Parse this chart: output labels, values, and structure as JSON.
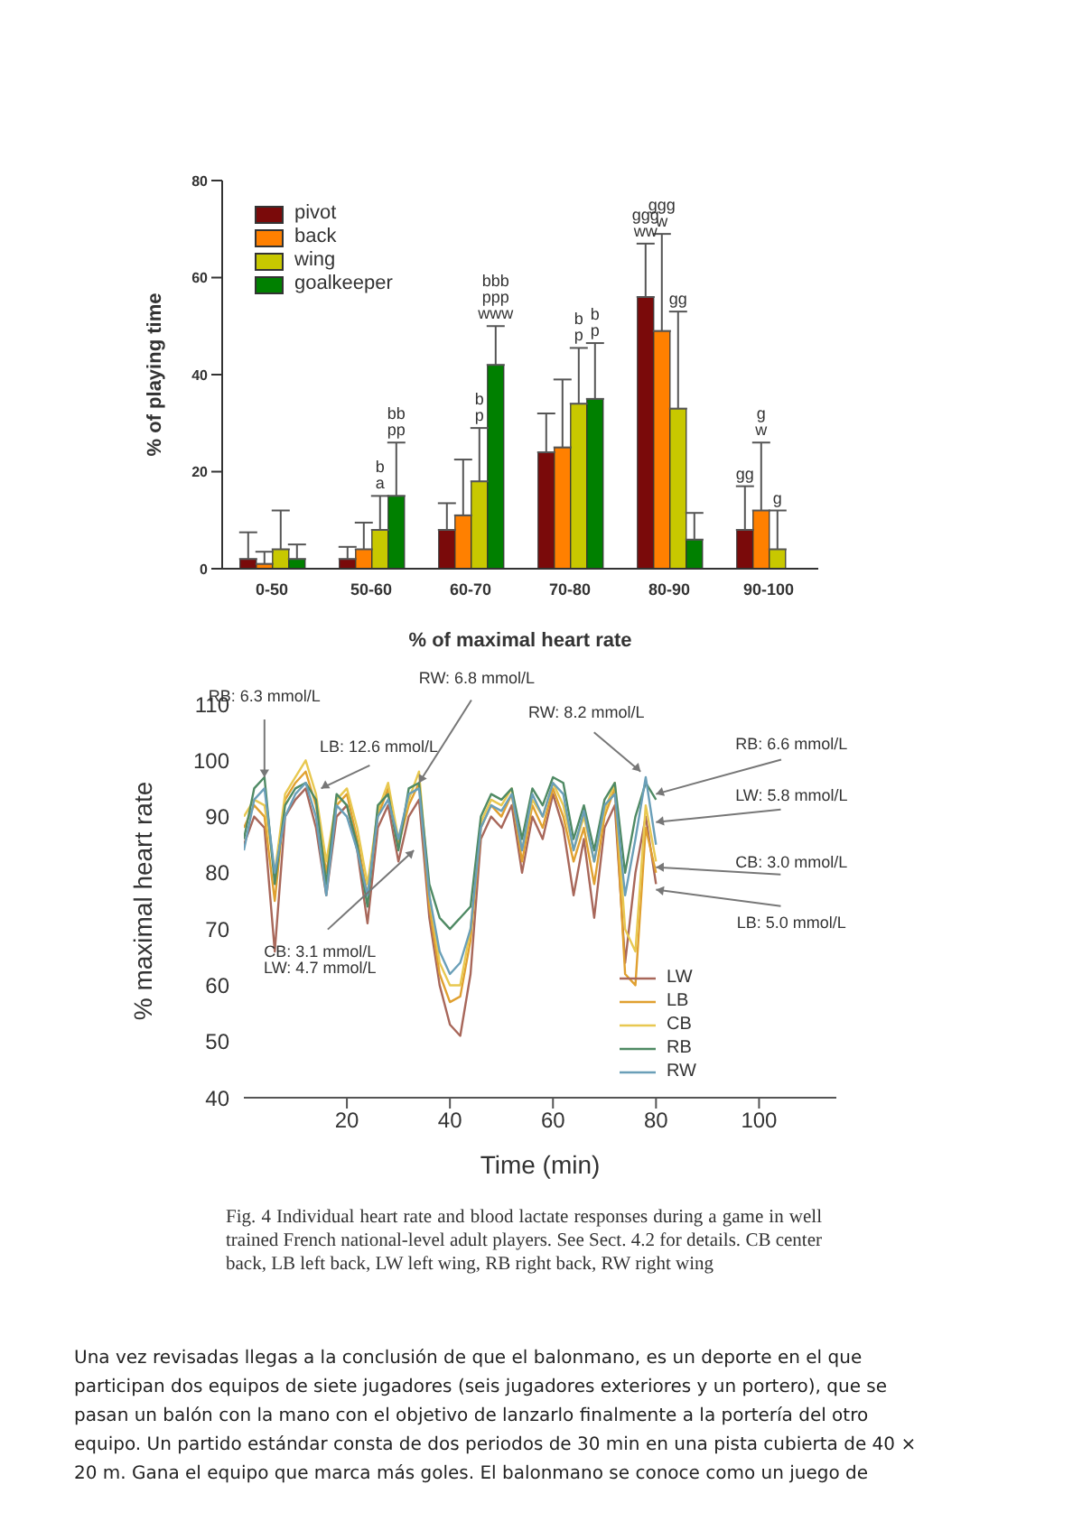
{
  "chart_data": [
    {
      "type": "bar",
      "ylabel": "% of playing time",
      "xlabel": "% of maximal heart rate",
      "categories": [
        "0-50",
        "50-60",
        "60-70",
        "70-80",
        "80-90",
        "90-100"
      ],
      "ylim": [
        0,
        80
      ],
      "yticks": [
        0,
        20,
        40,
        60,
        80
      ],
      "grid": false,
      "legend": "top left",
      "series": [
        {
          "name": "pivot",
          "color": "#7a0a0a",
          "values": [
            2,
            2,
            8,
            24,
            56,
            8
          ],
          "errors": [
            [
              2,
              7.5
            ],
            [
              2,
              4.5
            ],
            [
              8,
              13.5
            ],
            [
              24,
              32
            ],
            [
              56,
              67
            ],
            [
              8,
              17
            ]
          ]
        },
        {
          "name": "back",
          "color": "#ff8000",
          "values": [
            1,
            4,
            11,
            25,
            49,
            12
          ],
          "errors": [
            [
              1,
              3.5
            ],
            [
              4,
              9.5
            ],
            [
              11,
              22.5
            ],
            [
              25,
              39
            ],
            [
              49,
              69
            ],
            [
              12,
              26
            ]
          ]
        },
        {
          "name": "wing",
          "color": "#c8c800",
          "values": [
            4,
            8,
            18,
            34,
            33,
            4
          ],
          "errors": [
            [
              4,
              12
            ],
            [
              8,
              15
            ],
            [
              18,
              29
            ],
            [
              34,
              45.5
            ],
            [
              33,
              53
            ],
            [
              4,
              12
            ]
          ]
        },
        {
          "name": "goalkeeper",
          "color": "#008000",
          "values": [
            2,
            15,
            42,
            35,
            6,
            null
          ],
          "errors": [
            [
              2,
              5
            ],
            [
              15,
              26
            ],
            [
              42,
              50
            ],
            [
              35,
              46.5
            ],
            [
              6,
              11.5
            ],
            null
          ]
        }
      ],
      "annotations": [
        "b\na",
        "bb\npp",
        "b\np",
        "bbb\nppp\nwww",
        "b\np",
        "b\np",
        "ggg\nww",
        "ggg\nw",
        "gg",
        "gg",
        "g\nw",
        "g"
      ]
    },
    {
      "type": "line",
      "ylabel": "% maximal heart rate",
      "xlabel": "Time (min)",
      "xlim": [
        0,
        115
      ],
      "xticks": [
        20,
        40,
        60,
        80,
        100
      ],
      "ylim": [
        40,
        110
      ],
      "yticks": [
        40,
        50,
        60,
        70,
        80,
        90,
        100,
        110
      ],
      "grid": false,
      "legend": "bottom right",
      "marker": "none",
      "line_style": "solid",
      "x": [
        0,
        2,
        4,
        6,
        8,
        10,
        12,
        14,
        16,
        18,
        20,
        22,
        24,
        26,
        28,
        30,
        32,
        34,
        36,
        38,
        40,
        42,
        44,
        46,
        48,
        50,
        52,
        54,
        56,
        58,
        60,
        62,
        64,
        66,
        68,
        70,
        72,
        74,
        76,
        78,
        80
      ],
      "series": [
        {
          "name": "LW",
          "color": "#a8675a",
          "values": [
            85,
            90,
            88,
            66,
            90,
            93,
            95,
            88,
            76,
            90,
            92,
            84,
            71,
            88,
            92,
            82,
            90,
            93,
            72,
            60,
            53,
            51,
            62,
            86,
            90,
            88,
            92,
            80,
            90,
            86,
            94,
            88,
            76,
            86,
            72,
            88,
            92,
            64,
            80,
            90,
            78
          ]
        },
        {
          "name": "LB",
          "color": "#e0a030",
          "values": [
            88,
            92,
            90,
            75,
            93,
            96,
            98,
            92,
            80,
            92,
            94,
            86,
            76,
            90,
            95,
            85,
            92,
            96,
            74,
            62,
            57,
            58,
            68,
            88,
            92,
            90,
            94,
            82,
            92,
            88,
            95,
            90,
            82,
            88,
            78,
            90,
            95,
            62,
            60,
            88,
            80
          ]
        },
        {
          "name": "CB",
          "color": "#e8c850",
          "values": [
            90,
            93,
            92,
            80,
            94,
            97,
            100,
            94,
            82,
            93,
            95,
            88,
            78,
            91,
            96,
            86,
            93,
            98,
            76,
            64,
            60,
            60,
            70,
            89,
            93,
            92,
            95,
            84,
            93,
            90,
            96,
            92,
            84,
            90,
            82,
            91,
            96,
            70,
            66,
            92,
            82
          ]
        },
        {
          "name": "RB",
          "color": "#4f8a64",
          "values": [
            86,
            95,
            97,
            78,
            92,
            95,
            96,
            93,
            78,
            94,
            92,
            85,
            74,
            92,
            94,
            84,
            95,
            96,
            78,
            72,
            70,
            72,
            74,
            90,
            94,
            93,
            95,
            86,
            95,
            92,
            97,
            96,
            86,
            92,
            84,
            93,
            96,
            80,
            90,
            96,
            93
          ]
        },
        {
          "name": "RW",
          "color": "#6a9fb8",
          "values": [
            84,
            93,
            95,
            80,
            90,
            94,
            96,
            90,
            76,
            92,
            90,
            84,
            76,
            90,
            93,
            86,
            94,
            95,
            76,
            66,
            62,
            64,
            70,
            88,
            92,
            91,
            94,
            84,
            94,
            90,
            96,
            94,
            84,
            91,
            82,
            92,
            94,
            76,
            86,
            97,
            85
          ]
        }
      ],
      "annotations": [
        {
          "text": "RB: 6.3 mmol/L",
          "x": 4,
          "y": 97
        },
        {
          "text": "LB: 12.6 mmol/L",
          "x": 15,
          "y": 95
        },
        {
          "text": "RW: 6.8 mmol/L",
          "x": 34,
          "y": 96
        },
        {
          "text": "RW: 8.2 mmol/L",
          "x": 77,
          "y": 98
        },
        {
          "text": "RB: 6.6 mmol/L",
          "x": 80,
          "y": 94
        },
        {
          "text": "LW: 5.8 mmol/L",
          "x": 80,
          "y": 89
        },
        {
          "text": "CB: 3.0 mmol/L",
          "x": 80,
          "y": 81
        },
        {
          "text": "LB: 5.0 mmol/L",
          "x": 80,
          "y": 77
        },
        {
          "text": "CB: 3.1 mmol/L\nLW: 4.7 mmol/L",
          "x": 33,
          "y": 84
        },
        "Fig. 4 Individual heart rate and blood lactate responses during a game in well trained French national-level adult players. See Sect. 4.2 for details. CB center back, LB left back, LW left wing, RB right back, RW right wing",
        "Una vez revisadas llegas a la conclusión de que el balonmano, es un deporte en el que participan dos equipos de siete jugadores (seis jugadores exteriores y un portero), que se pasan un balón con la mano con el objetivo de lanzarlo finalmente a la portería del otro equipo. Un partido estándar consta de dos periodos de 30 min en una pista cubierta de 40 × 20 m. Gana el equipo que marca más goles. El balonmano se conoce como un juego de"
      ]
    }
  ]
}
